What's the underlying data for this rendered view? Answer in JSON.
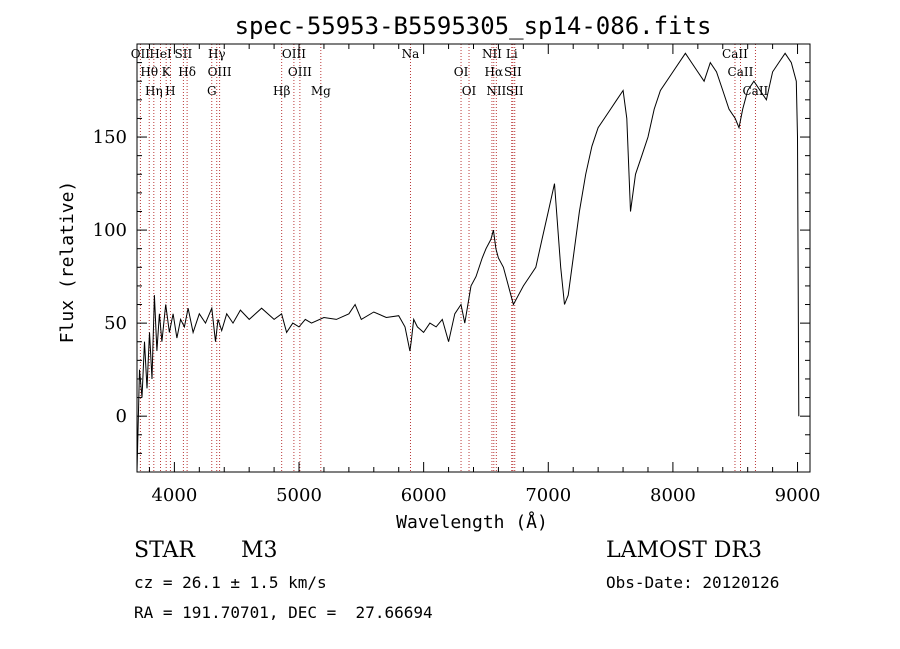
{
  "chart_data": {
    "type": "line",
    "title": "spec-55953-B5595305_sp14-086.fits",
    "xlabel": "Wavelength (Å)",
    "ylabel": "Flux (relative)",
    "xlim": [
      3700,
      9100
    ],
    "ylim": [
      -30,
      200
    ],
    "xticks": [
      4000,
      5000,
      6000,
      7000,
      8000,
      9000
    ],
    "yticks": [
      0,
      50,
      100,
      150
    ],
    "grid": false,
    "series": [
      {
        "color": "#000000",
        "x": [
          3700,
          3720,
          3740,
          3760,
          3780,
          3800,
          3820,
          3840,
          3860,
          3880,
          3900,
          3930,
          3960,
          3990,
          4020,
          4050,
          4080,
          4110,
          4150,
          4200,
          4250,
          4300,
          4330,
          4350,
          4380,
          4420,
          4470,
          4530,
          4600,
          4700,
          4800,
          4860,
          4900,
          4950,
          5000,
          5050,
          5100,
          5200,
          5300,
          5400,
          5450,
          5500,
          5600,
          5700,
          5800,
          5850,
          5890,
          5900,
          5920,
          5950,
          6000,
          6050,
          6100,
          6150,
          6200,
          6250,
          6300,
          6330,
          6380,
          6420,
          6470,
          6500,
          6540,
          6560,
          6580,
          6600,
          6640,
          6680,
          6720,
          6760,
          6800,
          6850,
          6900,
          6950,
          7000,
          7050,
          7100,
          7130,
          7160,
          7200,
          7250,
          7300,
          7350,
          7400,
          7450,
          7500,
          7550,
          7600,
          7630,
          7660,
          7700,
          7750,
          7800,
          7850,
          7900,
          8000,
          8100,
          8150,
          8200,
          8250,
          8300,
          8350,
          8400,
          8450,
          8500,
          8530,
          8560,
          8600,
          8650,
          8700,
          8750,
          8800,
          8850,
          8900,
          8950,
          8990,
          9000,
          9010
        ],
        "y": [
          -30,
          25,
          10,
          40,
          15,
          45,
          20,
          65,
          35,
          55,
          40,
          60,
          45,
          55,
          42,
          52,
          48,
          58,
          45,
          55,
          50,
          58,
          40,
          52,
          46,
          55,
          50,
          57,
          52,
          58,
          52,
          55,
          45,
          50,
          48,
          52,
          50,
          53,
          52,
          55,
          60,
          52,
          56,
          53,
          54,
          48,
          35,
          40,
          52,
          48,
          45,
          50,
          48,
          52,
          40,
          55,
          60,
          50,
          70,
          75,
          85,
          90,
          95,
          100,
          90,
          85,
          80,
          70,
          60,
          65,
          70,
          75,
          80,
          95,
          110,
          125,
          80,
          60,
          65,
          85,
          110,
          130,
          145,
          155,
          160,
          165,
          170,
          175,
          160,
          110,
          130,
          140,
          150,
          165,
          175,
          185,
          195,
          190,
          185,
          180,
          190,
          185,
          175,
          165,
          160,
          155,
          165,
          175,
          180,
          175,
          170,
          185,
          190,
          195,
          190,
          180,
          150,
          0
        ]
      }
    ],
    "lines": [
      {
        "name": "OII",
        "x": 3727
      },
      {
        "name": "Hθ",
        "x": 3798
      },
      {
        "name": "Hη",
        "x": 3835
      },
      {
        "name": "HeI",
        "x": 3889
      },
      {
        "name": "K",
        "x": 3934
      },
      {
        "name": "H",
        "x": 3968
      },
      {
        "name": "SII",
        "x": 4072
      },
      {
        "name": "Hδ",
        "x": 4102
      },
      {
        "name": "G",
        "x": 4300
      },
      {
        "name": "Hγ",
        "x": 4340
      },
      {
        "name": "OIII",
        "x": 4363
      },
      {
        "name": "Hβ",
        "x": 4861
      },
      {
        "name": "OIII",
        "x": 4959
      },
      {
        "name": "OIII",
        "x": 5007
      },
      {
        "name": "Mg",
        "x": 5175
      },
      {
        "name": "Na",
        "x": 5894
      },
      {
        "name": "OI",
        "x": 6300
      },
      {
        "name": "OI",
        "x": 6364
      },
      {
        "name": "NII",
        "x": 6548
      },
      {
        "name": "Hα",
        "x": 6563
      },
      {
        "name": "NII",
        "x": 6583
      },
      {
        "name": "Li",
        "x": 6707
      },
      {
        "name": "SII",
        "x": 6716
      },
      {
        "name": "SII",
        "x": 6731
      },
      {
        "name": "CaII",
        "x": 8498
      },
      {
        "name": "CaII",
        "x": 8542
      },
      {
        "name": "CaII",
        "x": 8662
      }
    ]
  },
  "info": {
    "class": "STAR",
    "subclass": "M3",
    "survey": "LAMOST DR3",
    "cz": "cz = 26.1 ± 1.5 km/s",
    "obs_date": "Obs-Date: 20120126",
    "radec": "RA = 191.70701, DEC =  27.66694"
  }
}
